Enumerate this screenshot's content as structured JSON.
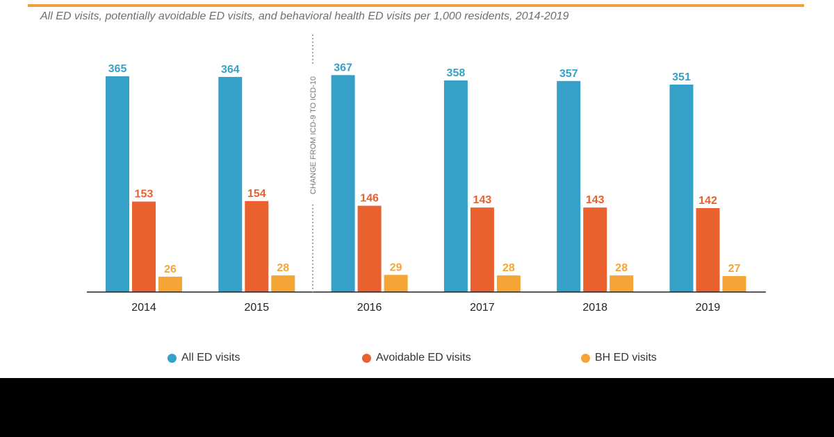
{
  "title": "All ED visits, potentially avoidable ED visits, and behavioral health ED visits per 1,000 residents, 2014-2019",
  "colors": {
    "accent_line": "#f2a03d",
    "all_ed": "#35a0c8",
    "avoidable_ed": "#e9612e",
    "bh_ed": "#f5a535"
  },
  "chart_data": {
    "type": "bar",
    "title": "All ED visits, potentially avoidable ED visits, and behavioral health ED visits per 1,000 residents, 2014-2019",
    "xlabel": "",
    "ylabel": "",
    "categories": [
      "2014",
      "2015",
      "2016",
      "2017",
      "2018",
      "2019"
    ],
    "series": [
      {
        "name": "All ED visits",
        "color": "#35a0c8",
        "values": [
          365,
          364,
          367,
          358,
          357,
          351
        ]
      },
      {
        "name": "Avoidable ED visits",
        "color": "#e9612e",
        "values": [
          153,
          154,
          146,
          143,
          143,
          142
        ]
      },
      {
        "name": "BH ED visits",
        "color": "#f5a535",
        "values": [
          26,
          28,
          29,
          28,
          28,
          27
        ]
      }
    ],
    "ylim": [
      0,
      367
    ],
    "grid": false,
    "legend_position": "bottom",
    "annotations": [
      {
        "text": "CHANGE FROM ICD-9 TO ICD-10",
        "between": [
          "2015",
          "2016"
        ],
        "style": "dotted vertical divider"
      }
    ]
  }
}
